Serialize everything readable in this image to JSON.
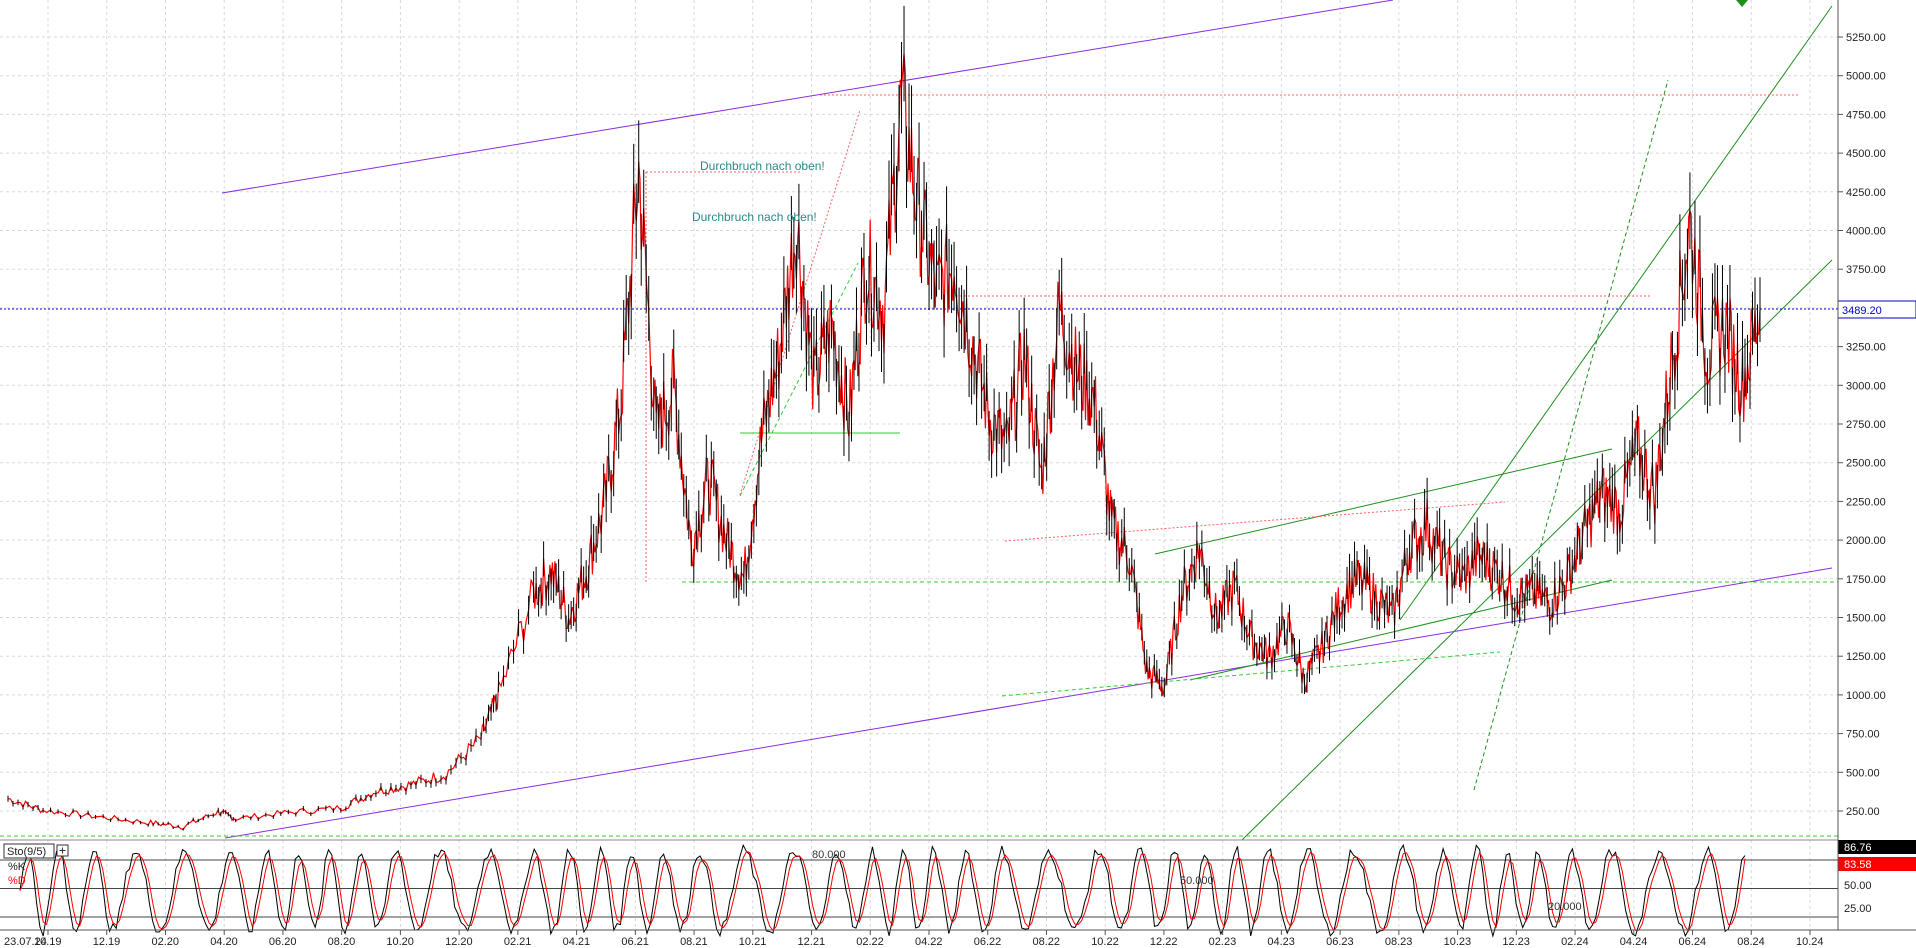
{
  "chart_data": [
    {
      "type": "line",
      "panel": "price",
      "ylim": [
        0,
        5500
      ],
      "y_ticks": [
        "250.00",
        "500.00",
        "750.00",
        "1000.00",
        "1250.00",
        "1500.00",
        "1750.00",
        "2000.00",
        "2250.00",
        "2500.00",
        "2750.00",
        "3000.00",
        "3250.00",
        "3500.00",
        "3750.00",
        "4000.00",
        "4250.00",
        "4500.00",
        "4750.00",
        "5000.00",
        "5250.00"
      ],
      "x_ticks": [
        "23.07.24",
        "10.19",
        "12.19",
        "02.20",
        "04.20",
        "06.20",
        "08.20",
        "10.20",
        "12.20",
        "02.21",
        "04.21",
        "06.21",
        "08.21",
        "10.21",
        "12.21",
        "02.22",
        "04.22",
        "06.22",
        "08.22",
        "10.22",
        "12.22",
        "02.23",
        "04.23",
        "06.23",
        "08.23",
        "10.23",
        "12.23",
        "02.24",
        "04.24",
        "06.24",
        "08.24",
        "10.24"
      ],
      "last_price": "3489.20",
      "last_price_value": 3489.2,
      "annotations": [
        "Durchbruch nach oben!",
        "Durchbruch nach oben!"
      ],
      "series_points": [
        [
          0,
          330
        ],
        [
          0.02,
          255
        ],
        [
          0.05,
          215
        ],
        [
          0.08,
          175
        ],
        [
          0.1,
          150
        ],
        [
          0.12,
          245
        ],
        [
          0.13,
          200
        ],
        [
          0.16,
          240
        ],
        [
          0.19,
          270
        ],
        [
          0.21,
          380
        ],
        [
          0.23,
          420
        ],
        [
          0.25,
          490
        ],
        [
          0.27,
          720
        ],
        [
          0.28,
          1000
        ],
        [
          0.3,
          1650
        ],
        [
          0.31,
          1800
        ],
        [
          0.32,
          1500
        ],
        [
          0.33,
          1800
        ],
        [
          0.34,
          2200
        ],
        [
          0.35,
          2900
        ],
        [
          0.36,
          4400
        ],
        [
          0.37,
          2700
        ],
        [
          0.38,
          3000
        ],
        [
          0.39,
          1950
        ],
        [
          0.4,
          2400
        ],
        [
          0.41,
          2000
        ],
        [
          0.42,
          1750
        ],
        [
          0.43,
          2650
        ],
        [
          0.44,
          3200
        ],
        [
          0.45,
          4050
        ],
        [
          0.46,
          3000
        ],
        [
          0.47,
          3400
        ],
        [
          0.48,
          2800
        ],
        [
          0.49,
          3800
        ],
        [
          0.5,
          3500
        ],
        [
          0.51,
          4850
        ],
        [
          0.52,
          4100
        ],
        [
          0.53,
          3600
        ],
        [
          0.54,
          3800
        ],
        [
          0.55,
          3300
        ],
        [
          0.56,
          2800
        ],
        [
          0.57,
          2600
        ],
        [
          0.58,
          3200
        ],
        [
          0.59,
          2400
        ],
        [
          0.6,
          3500
        ],
        [
          0.61,
          3100
        ],
        [
          0.62,
          2900
        ],
        [
          0.63,
          2100
        ],
        [
          0.64,
          1900
        ],
        [
          0.65,
          1150
        ],
        [
          0.66,
          1050
        ],
        [
          0.67,
          1650
        ],
        [
          0.68,
          1950
        ],
        [
          0.69,
          1500
        ],
        [
          0.7,
          1700
        ],
        [
          0.71,
          1350
        ],
        [
          0.72,
          1250
        ],
        [
          0.73,
          1450
        ],
        [
          0.74,
          1100
        ],
        [
          0.75,
          1300
        ],
        [
          0.76,
          1600
        ],
        [
          0.77,
          1750
        ],
        [
          0.78,
          1650
        ],
        [
          0.79,
          1500
        ],
        [
          0.8,
          1950
        ],
        [
          0.81,
          2100
        ],
        [
          0.82,
          1850
        ],
        [
          0.83,
          1750
        ],
        [
          0.84,
          1900
        ],
        [
          0.85,
          1800
        ],
        [
          0.86,
          1650
        ],
        [
          0.87,
          1650
        ],
        [
          0.88,
          1600
        ],
        [
          0.89,
          1750
        ],
        [
          0.9,
          2050
        ],
        [
          0.91,
          2300
        ],
        [
          0.92,
          2200
        ],
        [
          0.93,
          2600
        ],
        [
          0.94,
          2300
        ],
        [
          0.95,
          3200
        ],
        [
          0.96,
          4050
        ],
        [
          0.97,
          3200
        ],
        [
          0.98,
          3400
        ],
        [
          0.99,
          3000
        ],
        [
          1.0,
          3489
        ]
      ]
    },
    {
      "type": "line",
      "panel": "stochastic",
      "title": "Sto(9/5)",
      "series": [
        {
          "name": "%K"
        },
        {
          "name": "%D"
        }
      ],
      "ylim": [
        0,
        100
      ],
      "y_ticks": [
        "25.00",
        "50.00"
      ],
      "levels": [
        "80.000",
        "50.000",
        "20.000"
      ],
      "current_k": "86.76",
      "current_d": "83.58"
    }
  ],
  "colors": {
    "grid": "#d9d9d9",
    "candle_up": "#000000",
    "candle_down": "#ff0000",
    "trend_purple": "#8a2be2",
    "trend_green": "#1e8f1e",
    "dotted_red": "#ff6060",
    "last_price_blue": "#0000cc",
    "k_line": "#000000",
    "d_line": "#ff0000"
  },
  "icons": {
    "indicator_add": "plus-square-icon",
    "marker": "down-triangle-icon"
  }
}
